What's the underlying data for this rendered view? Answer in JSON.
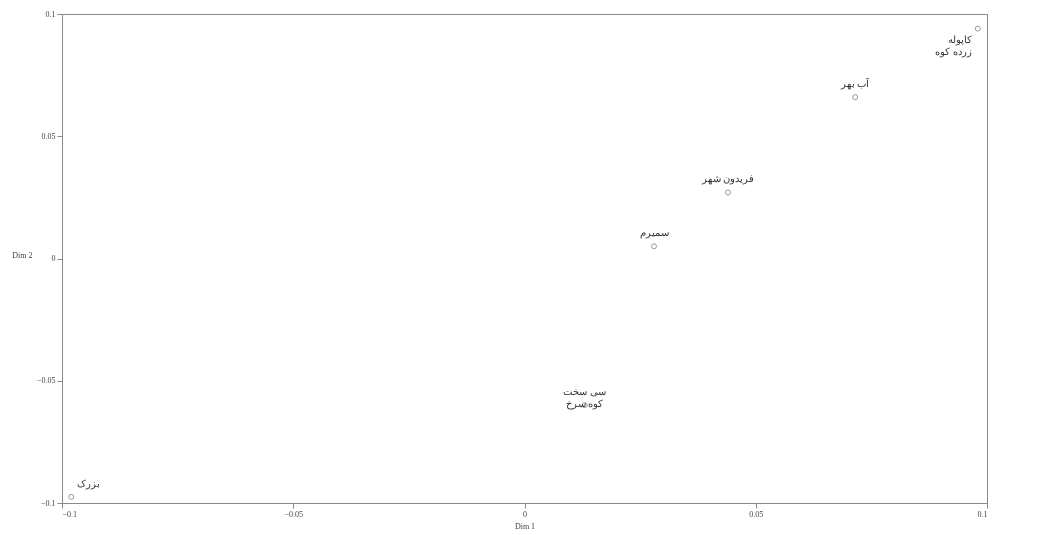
{
  "chart_data": {
    "type": "scatter",
    "xlabel": "Dim 1",
    "ylabel": "Dim 2",
    "x": [
      0.098,
      0.0715,
      0.044,
      0.028,
      0.013,
      -0.098
    ],
    "series": [
      {
        "color": "#808080",
        "values": [
          0.094,
          0.066,
          0.027,
          0.005,
          -0.06,
          -0.0975
        ]
      }
    ],
    "annotations": [
      {
        "text": "کاپوله\nزرده کوه",
        "x": 0.098,
        "y": 0.094
      },
      {
        "text": "آب بهر",
        "x": 0.0715,
        "y": 0.066
      },
      {
        "text": "فریدون شهر",
        "x": 0.044,
        "y": 0.027
      },
      {
        "text": "سمیرم",
        "x": 0.028,
        "y": 0.005
      },
      {
        "text": "سی سخت\nکوه سرخ",
        "x": 0.013,
        "y": -0.06
      },
      {
        "text": "بزرک",
        "x": -0.098,
        "y": -0.0975
      }
    ],
    "xlim": [
      -0.1,
      0.1
    ],
    "ylim": [
      -0.1,
      0.1
    ],
    "xticks": [
      -0.1,
      -0.05,
      0,
      0.05,
      0.1
    ],
    "yticks": [
      -0.1,
      -0.05,
      0,
      0.05,
      0.1
    ],
    "grid": false,
    "marker": "circle"
  }
}
